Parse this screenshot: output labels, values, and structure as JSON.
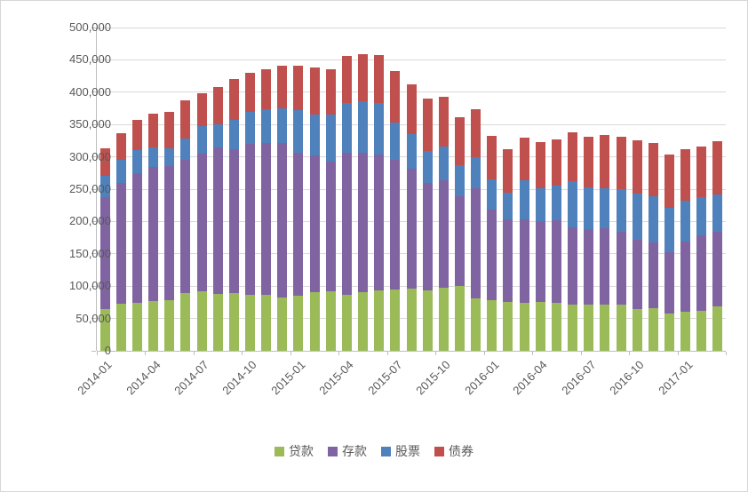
{
  "chart_data": {
    "type": "bar",
    "stacked": true,
    "title": "",
    "xlabel": "",
    "ylabel": "",
    "ylim": [
      0,
      500000
    ],
    "ytick_interval": 50000,
    "ytick_labels": [
      "0",
      "50,000",
      "100,000",
      "150,000",
      "200,000",
      "250,000",
      "300,000",
      "350,000",
      "400,000",
      "450,000",
      "500,000"
    ],
    "grid": true,
    "legend_position": "bottom",
    "xtick_every": 3,
    "categories": [
      "2014-01",
      "2014-02",
      "2014-03",
      "2014-04",
      "2014-05",
      "2014-06",
      "2014-07",
      "2014-08",
      "2014-09",
      "2014-10",
      "2014-11",
      "2014-12",
      "2015-01",
      "2015-02",
      "2015-03",
      "2015-04",
      "2015-05",
      "2015-06",
      "2015-07",
      "2015-08",
      "2015-09",
      "2015-10",
      "2015-11",
      "2015-12",
      "2016-01",
      "2016-02",
      "2016-03",
      "2016-04",
      "2016-05",
      "2016-06",
      "2016-07",
      "2016-08",
      "2016-09",
      "2016-10",
      "2016-11",
      "2016-12",
      "2017-01",
      "2017-02",
      "2017-03"
    ],
    "series": [
      {
        "name": "贷款",
        "color": "#9BBB59",
        "values": [
          64000,
          73000,
          74000,
          77000,
          79000,
          89000,
          92000,
          88000,
          89000,
          86000,
          86000,
          82000,
          85000,
          90000,
          92000,
          86000,
          91000,
          93000,
          95000,
          96000,
          94000,
          98000,
          100000,
          81000,
          78000,
          76000,
          74000,
          75000,
          74000,
          72000,
          71000,
          72000,
          71000,
          65000,
          66000,
          58000,
          60000,
          62000,
          69000
        ]
      },
      {
        "name": "存款",
        "color": "#8064A2",
        "values": [
          173000,
          187000,
          201000,
          207000,
          207000,
          206000,
          213000,
          227000,
          223000,
          234000,
          236000,
          240000,
          221000,
          212000,
          200000,
          220000,
          216000,
          210000,
          201000,
          185000,
          166000,
          166000,
          139000,
          171000,
          140000,
          127000,
          129000,
          126000,
          128000,
          119000,
          117000,
          117000,
          113000,
          107000,
          102000,
          95000,
          109000,
          116000,
          115000
        ]
      },
      {
        "name": "股票",
        "color": "#4F81BD",
        "values": [
          33000,
          36000,
          36000,
          31000,
          27000,
          34000,
          42000,
          35000,
          45000,
          50000,
          51000,
          53000,
          66000,
          64000,
          74000,
          77000,
          79000,
          80000,
          57000,
          54000,
          49000,
          52000,
          48000,
          48000,
          47000,
          41000,
          61000,
          51000,
          53000,
          71000,
          65000,
          62000,
          66000,
          71000,
          71000,
          68000,
          63000,
          59000,
          58000
        ]
      },
      {
        "name": "债券",
        "color": "#C0504D",
        "values": [
          43000,
          40000,
          46000,
          52000,
          57000,
          58000,
          52000,
          58000,
          64000,
          60000,
          63000,
          66000,
          69000,
          72000,
          70000,
          73000,
          73000,
          75000,
          80000,
          77000,
          81000,
          77000,
          74000,
          73000,
          68000,
          68000,
          66000,
          71000,
          72000,
          76000,
          78000,
          83000,
          81000,
          82000,
          83000,
          82000,
          80000,
          79000,
          82000
        ]
      }
    ],
    "colors": {
      "grid": "#D9D9D9",
      "axis": "#BFBFBF",
      "text": "#595959",
      "background": "#FFFFFF"
    }
  }
}
